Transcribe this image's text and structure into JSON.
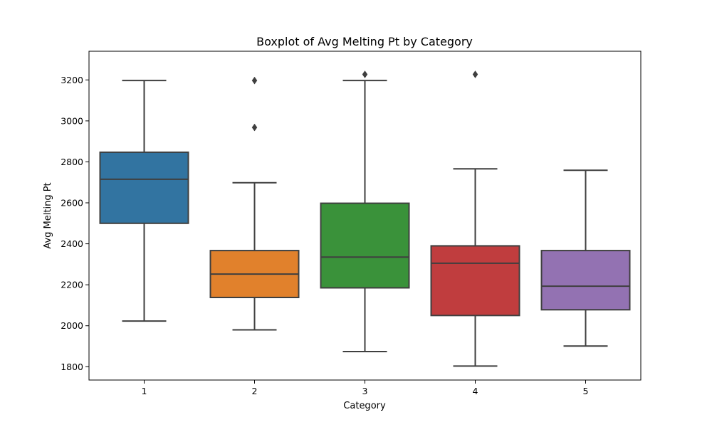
{
  "chart_data": {
    "type": "boxplot",
    "title": "Boxplot of Avg Melting Pt by Category",
    "xlabel": "Category",
    "ylabel": "Avg Melting Pt",
    "categories": [
      "1",
      "2",
      "3",
      "4",
      "5"
    ],
    "ylim": [
      1735,
      3340
    ],
    "yticks": [
      1800,
      2000,
      2200,
      2400,
      2600,
      2800,
      3000,
      3200
    ],
    "grid": false,
    "boxes": [
      {
        "category": "1",
        "whisker_low": 2023,
        "q1": 2500,
        "median": 2715,
        "q3": 2847,
        "whisker_high": 3197,
        "outliers": [],
        "color": "#3274a1"
      },
      {
        "category": "2",
        "whisker_low": 1980,
        "q1": 2138,
        "median": 2252,
        "q3": 2367,
        "whisker_high": 2698,
        "outliers": [
          2968,
          3197
        ],
        "color": "#e1812c"
      },
      {
        "category": "3",
        "whisker_low": 1874,
        "q1": 2185,
        "median": 2335,
        "q3": 2598,
        "whisker_high": 3197,
        "outliers": [
          3227
        ],
        "color": "#3a923a"
      },
      {
        "category": "4",
        "whisker_low": 1803,
        "q1": 2050,
        "median": 2305,
        "q3": 2390,
        "whisker_high": 2766,
        "outliers": [
          3227
        ],
        "color": "#c03d3e"
      },
      {
        "category": "5",
        "whisker_low": 1901,
        "q1": 2078,
        "median": 2193,
        "q3": 2367,
        "whisker_high": 2759,
        "outliers": [],
        "color": "#9372b2"
      }
    ]
  }
}
